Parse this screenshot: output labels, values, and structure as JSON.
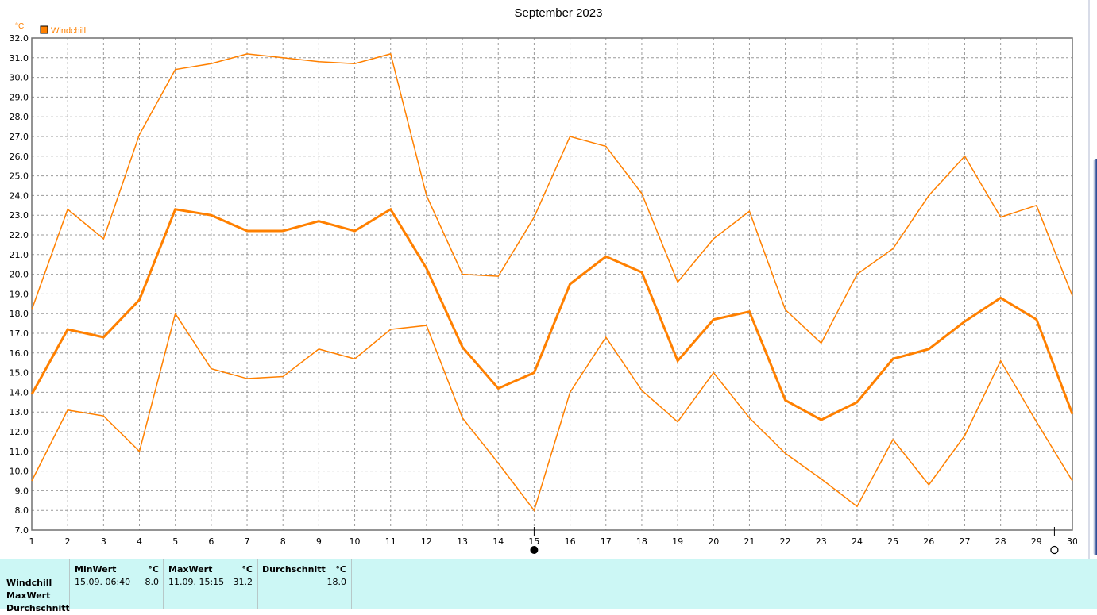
{
  "chart_data": {
    "type": "line",
    "title": "September 2023",
    "y_unit": "°C",
    "legend": {
      "label": "Windchill",
      "color": "#ff8000",
      "placement": "top-left"
    },
    "ylim": [
      7.0,
      32.0
    ],
    "y_ticks": [
      "32.0",
      "31.0",
      "30.0",
      "29.0",
      "28.0",
      "27.0",
      "26.0",
      "25.0",
      "24.0",
      "23.0",
      "22.0",
      "21.0",
      "20.0",
      "19.0",
      "18.0",
      "17.0",
      "16.0",
      "15.0",
      "14.0",
      "13.0",
      "12.0",
      "11.0",
      "10.0",
      "9.0",
      "8.0",
      "7.0"
    ],
    "x": [
      1,
      2,
      3,
      4,
      5,
      6,
      7,
      8,
      9,
      10,
      11,
      12,
      13,
      14,
      15,
      16,
      17,
      18,
      19,
      20,
      21,
      22,
      23,
      24,
      25,
      26,
      27,
      28,
      29,
      30
    ],
    "x_ticks": [
      "1",
      "2",
      "3",
      "4",
      "5",
      "6",
      "7",
      "8",
      "9",
      "10",
      "11",
      "12",
      "13",
      "14",
      "15",
      "16",
      "17",
      "18",
      "19",
      "20",
      "21",
      "22",
      "23",
      "24",
      "25",
      "26",
      "27",
      "28",
      "29",
      "30"
    ],
    "grid": true,
    "series": [
      {
        "role": "max",
        "color": "#ff8000",
        "width": 1.5,
        "values": [
          18.2,
          23.3,
          21.8,
          27.1,
          30.4,
          30.7,
          31.2,
          31.0,
          30.8,
          30.7,
          31.2,
          24.0,
          20.0,
          19.9,
          22.9,
          27.0,
          26.5,
          24.1,
          19.6,
          21.8,
          23.2,
          18.2,
          16.5,
          20.0,
          21.3,
          24.0,
          26.0,
          22.9,
          23.5,
          18.9
        ]
      },
      {
        "role": "average",
        "color": "#ff8000",
        "width": 3,
        "values": [
          13.9,
          17.2,
          16.8,
          18.7,
          23.3,
          23.0,
          22.2,
          22.2,
          22.7,
          22.2,
          23.3,
          20.3,
          16.3,
          14.2,
          15.0,
          19.5,
          20.9,
          20.1,
          15.6,
          17.7,
          18.1,
          13.6,
          12.6,
          13.5,
          15.7,
          16.2,
          17.6,
          18.8,
          17.7,
          12.9
        ]
      },
      {
        "role": "min",
        "color": "#ff8000",
        "width": 1.5,
        "values": [
          9.5,
          13.1,
          12.8,
          11.0,
          18.0,
          15.2,
          14.7,
          14.8,
          16.2,
          15.7,
          17.2,
          17.4,
          12.7,
          10.4,
          8.0,
          14.0,
          16.8,
          14.1,
          12.5,
          15.0,
          12.7,
          10.9,
          9.6,
          8.2,
          11.6,
          9.3,
          11.8,
          15.6,
          12.5,
          9.5
        ]
      }
    ],
    "markers": [
      {
        "x": 15,
        "symbol": "full-moon-icon"
      },
      {
        "x": 29.5,
        "symbol": "new-moon-icon"
      }
    ]
  },
  "stats": {
    "row_labels": [
      "Windchill",
      "MaxWert",
      "Durchschnitt"
    ],
    "columns": [
      {
        "header": "MinWert",
        "unit": "°C",
        "when": "15.09.  06:40",
        "value": "8.0"
      },
      {
        "header": "MaxWert",
        "unit": "°C",
        "when": "11.09.  15:15",
        "value": "31.2"
      },
      {
        "header": "Durchschnitt",
        "unit": "°C",
        "when": "",
        "value": "18.0"
      }
    ]
  }
}
